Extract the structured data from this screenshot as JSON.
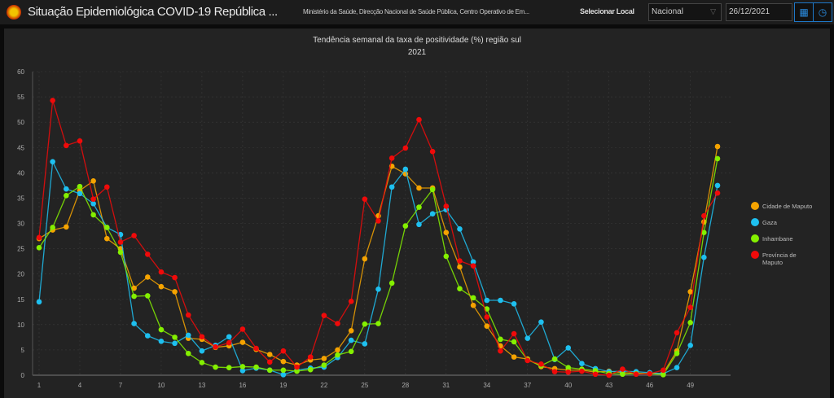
{
  "header": {
    "title": "Situação Epidemiológica COVID-19 República ...",
    "subtitle": "Ministério da Saúde, Direcção Nacional de Saúde Pública, Centro Operativo de Em...",
    "select_label": "Selecionar Local",
    "select_value": "Nacional",
    "date_value": "26/12/2021",
    "icons": [
      "emblem-logo",
      "calendar-icon",
      "clock-icon"
    ]
  },
  "chart_data": {
    "type": "line",
    "title": "Tendência semanal da taxa de positividade (%) região sul",
    "subtitle": "2021",
    "xlabel": "",
    "ylabel": "",
    "ylim": [
      0,
      60
    ],
    "xlim": [
      1,
      51
    ],
    "yticks": [
      0,
      5,
      10,
      15,
      20,
      25,
      30,
      35,
      40,
      45,
      50,
      55,
      60
    ],
    "xticks": [
      1,
      4,
      7,
      10,
      13,
      16,
      19,
      22,
      25,
      28,
      31,
      34,
      37,
      40,
      43,
      46,
      49
    ],
    "grid": true,
    "legend_position": "right",
    "series": [
      {
        "name": "Cidade de Maputo",
        "color": "#f5a300",
        "values": [
          27,
          28.7,
          29.3,
          36.5,
          38.4,
          27,
          25,
          17.2,
          19.4,
          17.5,
          16.5,
          7.3,
          7.1,
          5.5,
          5.8,
          6.5,
          5.1,
          4.1,
          2.7,
          2,
          3,
          3.3,
          5,
          8.8,
          23,
          31.5,
          41.3,
          39.8,
          37,
          37,
          28.2,
          21.4,
          13.8,
          9.7,
          5.8,
          3.6,
          3.2,
          1.7,
          1.3,
          1,
          1,
          0.6,
          0.8,
          0.5,
          0.4,
          0.3,
          0.4,
          4.8,
          16.5,
          30.3,
          45.2
        ]
      },
      {
        "name": "Gaza",
        "color": "#1ec0f0",
        "values": [
          14.5,
          42.2,
          36.8,
          35.9,
          33.9,
          29.2,
          27.8,
          10.2,
          7.8,
          6.7,
          6.3,
          7.9,
          4.8,
          5.9,
          7.6,
          0.9,
          1.4,
          1,
          0.1,
          1,
          1.4,
          1.6,
          3.5,
          6.9,
          6.2,
          17,
          37.2,
          40.7,
          29.8,
          31.9,
          32.7,
          28.9,
          22.4,
          14.8,
          14.8,
          14.1,
          7.3,
          10.5,
          3.1,
          5.4,
          2.3,
          1.3,
          0.7,
          0.8,
          0.7,
          0.5,
          0.3,
          1.5,
          5.9,
          23.3,
          37.5
        ]
      },
      {
        "name": "Inhambane",
        "color": "#84f000",
        "values": [
          25.2,
          29.2,
          35.5,
          37.3,
          31.7,
          29.2,
          24.3,
          15.6,
          15.7,
          9,
          7.5,
          4.3,
          2.5,
          1.6,
          1.5,
          1.7,
          1.6,
          1,
          1,
          0.8,
          1.1,
          2,
          4,
          4.7,
          10.1,
          10.2,
          18.2,
          29.5,
          33.2,
          36.7,
          23.5,
          17.1,
          15.3,
          13.1,
          7.1,
          6.6,
          3,
          1.9,
          3.2,
          1.5,
          1.2,
          0.9,
          0.3,
          0.2,
          0.3,
          0.3,
          0.1,
          4.3,
          10.4,
          28.2,
          42.8
        ]
      },
      {
        "name": "Província de Maputo",
        "color": "#f00a0a",
        "values": [
          27.2,
          54.3,
          45.4,
          46.3,
          34.8,
          37.2,
          26.3,
          27.6,
          23.9,
          20.4,
          19.3,
          11.9,
          7.6,
          5.6,
          6.4,
          9.1,
          5.3,
          2.6,
          4.8,
          1.6,
          3.6,
          11.8,
          10.2,
          14.6,
          34.8,
          30.5,
          42.9,
          44.9,
          50.5,
          44.2,
          33.4,
          22.6,
          21.6,
          11.5,
          4.8,
          8.2,
          2.9,
          2.2,
          0.7,
          0.6,
          0.8,
          0.2,
          0,
          1.2,
          0.2,
          0.3,
          1,
          8.4,
          13.4,
          31.5,
          36
        ]
      }
    ]
  }
}
